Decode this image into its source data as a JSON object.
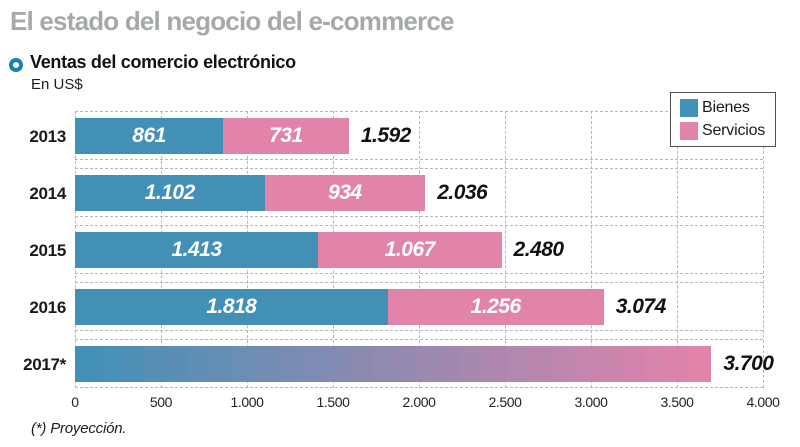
{
  "header": {
    "title": "El estado del negocio del e-commerce",
    "subtitle": "Ventas del comercio electrónico",
    "unit": "En US$"
  },
  "legend": {
    "items": [
      {
        "label": "Bienes",
        "color": "#4390b7"
      },
      {
        "label": "Servicios",
        "color": "#e283aa"
      }
    ]
  },
  "footnote": "(*) Proyección.",
  "colors": {
    "bienes": "#4390b7",
    "servicios": "#e283aa",
    "projection_gradient_start": "#4390b7",
    "projection_gradient_end": "#e283aa",
    "grid_dash": "#b5b8ba",
    "title_gray": "#a5a9ab",
    "bullet_blue": "#1680b9"
  },
  "chart_data": {
    "type": "bar",
    "orientation": "horizontal",
    "stacked": true,
    "title": "Ventas del comercio electrónico",
    "subtitle_unit": "En US$",
    "xlabel": "",
    "ylabel": "",
    "xlim": [
      0,
      4000
    ],
    "grid": "dashed",
    "legend_position": "top-right",
    "categories": [
      "2013",
      "2014",
      "2015",
      "2016",
      "2017*"
    ],
    "series": [
      {
        "name": "Bienes",
        "color": "#4390b7",
        "values": [
          861,
          1102,
          1413,
          1818,
          null
        ]
      },
      {
        "name": "Servicios",
        "color": "#e283aa",
        "values": [
          731,
          934,
          1067,
          1256,
          null
        ]
      }
    ],
    "totals": [
      1592,
      2036,
      2480,
      3074,
      3700
    ],
    "segment_labels": [
      [
        "861",
        "731"
      ],
      [
        "1.102",
        "934"
      ],
      [
        "1.413",
        "1.067"
      ],
      [
        "1.818",
        "1.256"
      ],
      []
    ],
    "total_labels": [
      "1.592",
      "2.036",
      "2.480",
      "3.074",
      "3.700"
    ],
    "projection_row": {
      "category": "2017*",
      "total": 3700,
      "style": "blue-to-pink-gradient"
    },
    "x_tick_values": [
      0,
      500,
      1000,
      1500,
      2000,
      2500,
      3000,
      3500,
      4000
    ],
    "x_tick_labels": [
      "0",
      "500",
      "1.000",
      "1.500",
      "2.000",
      "2.500",
      "3.000",
      "3.500",
      "4.000"
    ]
  }
}
